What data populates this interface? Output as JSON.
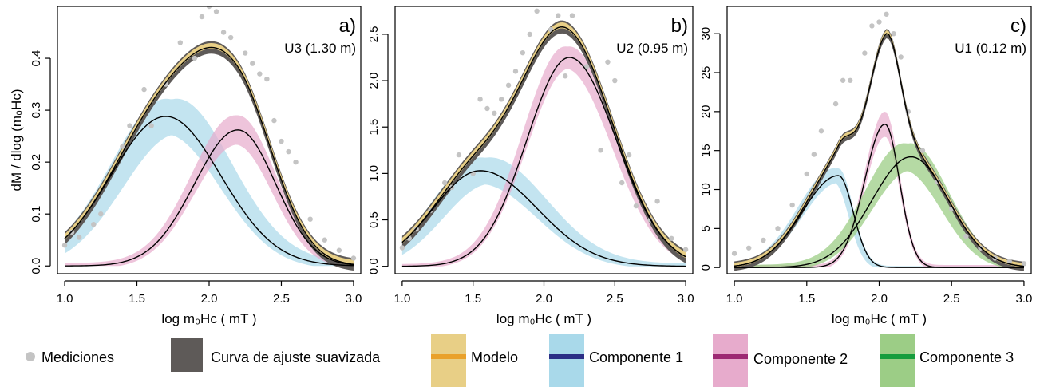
{
  "chart_data": [
    {
      "type": "line",
      "panel_label": "a)",
      "sample_label": "U3 (1.30 m)",
      "xlabel": "log m₀Hc ( mT )",
      "ylabel": "dM / dlog (m₀Hc)",
      "xlim": [
        0.95,
        3.05
      ],
      "ylim": [
        -0.015,
        0.5
      ],
      "xticks": [
        1.0,
        1.5,
        2.0,
        2.5,
        3.0
      ],
      "xtick_labels": [
        "1.0",
        "1.5",
        "2.0",
        "2.5",
        "3.0"
      ],
      "yticks": [
        0.0,
        0.1,
        0.2,
        0.3,
        0.4
      ],
      "ytick_labels": [
        "0.0",
        "0.1",
        "0.2",
        "0.3",
        "0.4"
      ],
      "measurements": [
        [
          1.0,
          0.04
        ],
        [
          1.05,
          0.065
        ],
        [
          1.1,
          0.055
        ],
        [
          1.2,
          0.08
        ],
        [
          1.25,
          0.1
        ],
        [
          1.4,
          0.23
        ],
        [
          1.45,
          0.27
        ],
        [
          1.55,
          0.34
        ],
        [
          1.6,
          0.27
        ],
        [
          1.7,
          0.35
        ],
        [
          1.8,
          0.43
        ],
        [
          1.9,
          0.4
        ],
        [
          1.95,
          0.48
        ],
        [
          2.0,
          0.5
        ],
        [
          2.05,
          0.49
        ],
        [
          2.1,
          0.45
        ],
        [
          2.15,
          0.44
        ],
        [
          2.25,
          0.41
        ],
        [
          2.3,
          0.39
        ],
        [
          2.35,
          0.37
        ],
        [
          2.4,
          0.36
        ],
        [
          2.45,
          0.28
        ],
        [
          2.5,
          0.24
        ],
        [
          2.55,
          0.22
        ],
        [
          2.6,
          0.2
        ],
        [
          2.7,
          0.09
        ],
        [
          2.8,
          0.05
        ],
        [
          2.9,
          0.03
        ],
        [
          3.0,
          0.015
        ]
      ],
      "components": [
        {
          "amplitude": 0.288,
          "center": 1.7,
          "sd_left": 0.38,
          "sd_right": 0.38,
          "band": 0.055,
          "band_shift": 0.08
        },
        {
          "amplitude": 0.262,
          "center": 2.2,
          "sd_left": 0.3,
          "sd_right": 0.26,
          "band": 0.045,
          "band_shift": -0.02
        }
      ],
      "smooth_band": 0.012
    },
    {
      "type": "line",
      "panel_label": "b)",
      "sample_label": "U2 (0.95 m)",
      "xlabel": "log m₀Hc ( mT )",
      "ylabel": "",
      "xlim": [
        0.95,
        3.05
      ],
      "ylim": [
        -0.08,
        2.8
      ],
      "xticks": [
        1.0,
        1.5,
        2.0,
        2.5,
        3.0
      ],
      "xtick_labels": [
        "1.0",
        "1.5",
        "2.0",
        "2.5",
        "3.0"
      ],
      "yticks": [
        0.0,
        0.5,
        1.0,
        1.5,
        2.0,
        2.5
      ],
      "ytick_labels": [
        "0.0",
        "0.5",
        "1.0",
        "1.5",
        "2.0",
        "2.5"
      ],
      "measurements": [
        [
          1.0,
          0.2
        ],
        [
          1.05,
          0.3
        ],
        [
          1.1,
          0.4
        ],
        [
          1.2,
          0.6
        ],
        [
          1.3,
          0.9
        ],
        [
          1.35,
          0.85
        ],
        [
          1.4,
          1.2
        ],
        [
          1.5,
          1.0
        ],
        [
          1.55,
          1.8
        ],
        [
          1.6,
          1.7
        ],
        [
          1.65,
          1.65
        ],
        [
          1.7,
          1.8
        ],
        [
          1.75,
          1.95
        ],
        [
          1.8,
          2.1
        ],
        [
          1.85,
          2.3
        ],
        [
          1.9,
          2.5
        ],
        [
          1.95,
          2.75
        ],
        [
          2.05,
          2.55
        ],
        [
          2.1,
          2.7
        ],
        [
          2.15,
          2.05
        ],
        [
          2.2,
          2.7
        ],
        [
          2.3,
          2.15
        ],
        [
          2.4,
          1.25
        ],
        [
          2.45,
          2.2
        ],
        [
          2.5,
          2.0
        ],
        [
          2.55,
          0.9
        ],
        [
          2.6,
          1.2
        ],
        [
          2.65,
          0.65
        ],
        [
          2.75,
          0.5
        ],
        [
          2.8,
          0.7
        ],
        [
          2.9,
          0.3
        ],
        [
          3.0,
          0.18
        ]
      ],
      "components": [
        {
          "amplitude": 1.03,
          "center": 1.55,
          "sd_left": 0.33,
          "sd_right": 0.4,
          "band": 0.23,
          "band_shift": 0.07
        },
        {
          "amplitude": 2.25,
          "center": 2.18,
          "sd_left": 0.3,
          "sd_right": 0.33,
          "band": 0.19,
          "band_shift": -0.03
        }
      ],
      "smooth_band": 0.07
    },
    {
      "type": "line",
      "panel_label": "c)",
      "sample_label": "U1 (0.12 m)",
      "xlabel": "log m₀Hc ( mT )",
      "ylabel": "",
      "xlim": [
        0.95,
        3.05
      ],
      "ylim": [
        -0.8,
        33.5
      ],
      "xticks": [
        1.0,
        1.5,
        2.0,
        2.5,
        3.0
      ],
      "xtick_labels": [
        "1.0",
        "1.5",
        "2.0",
        "2.5",
        "3.0"
      ],
      "yticks": [
        0,
        5,
        10,
        15,
        20,
        25,
        30
      ],
      "ytick_labels": [
        "0",
        "5",
        "10",
        "15",
        "20",
        "25",
        "30"
      ],
      "measurements": [
        [
          1.0,
          1.8
        ],
        [
          1.1,
          2.5
        ],
        [
          1.2,
          3.5
        ],
        [
          1.3,
          5.0
        ],
        [
          1.4,
          8.0
        ],
        [
          1.5,
          12.0
        ],
        [
          1.55,
          14.5
        ],
        [
          1.6,
          17.5
        ],
        [
          1.7,
          21.0
        ],
        [
          1.75,
          24.0
        ],
        [
          1.8,
          24.0
        ],
        [
          1.9,
          27.5
        ],
        [
          1.95,
          31.0
        ],
        [
          2.0,
          31.5
        ],
        [
          2.05,
          32.5
        ],
        [
          2.1,
          30.0
        ],
        [
          2.15,
          27.0
        ],
        [
          2.2,
          20.0
        ],
        [
          2.3,
          15.0
        ],
        [
          2.4,
          11.0
        ],
        [
          2.5,
          7.5
        ],
        [
          2.6,
          4.0
        ],
        [
          2.7,
          2.5
        ],
        [
          2.8,
          1.2
        ],
        [
          2.9,
          0.8
        ],
        [
          3.0,
          0.5
        ]
      ],
      "components": [
        {
          "amplitude": 11.8,
          "center": 1.72,
          "sd_left": 0.25,
          "sd_right": 0.1,
          "band": 1.5,
          "band_shift": -0.03
        },
        {
          "amplitude": 18.4,
          "center": 2.04,
          "sd_left": 0.14,
          "sd_right": 0.1,
          "band": 2.6,
          "band_shift": 0.0
        },
        {
          "amplitude": 14.2,
          "center": 2.22,
          "sd_left": 0.27,
          "sd_right": 0.26,
          "band": 2.8,
          "band_shift": -0.05
        }
      ],
      "smooth_band": 0.6
    }
  ],
  "legend": {
    "placement": "bottom",
    "entries": [
      {
        "key": "measurements",
        "label": "Mediciones"
      },
      {
        "key": "smooth",
        "label": "Curva de ajuste suavizada"
      },
      {
        "key": "model",
        "label": "Modelo"
      },
      {
        "key": "comp1",
        "label": "Componente 1"
      },
      {
        "key": "comp2",
        "label": "Componente 2"
      },
      {
        "key": "comp3",
        "label": "Componente 3"
      }
    ]
  },
  "colors": {
    "measurement_point": "#c4c4c4",
    "smooth_fill": "#5e5a58",
    "model_fill": "#e8cf86",
    "model_line": "#e9a12b",
    "comp1_fill": "#a9d9ea",
    "comp1_line": "#2c2f86",
    "comp2_fill": "#e7abcc",
    "comp2_line": "#9d2a73",
    "comp3_fill": "#9ccd86",
    "comp3_line": "#169d3d",
    "curve": "#000000"
  }
}
